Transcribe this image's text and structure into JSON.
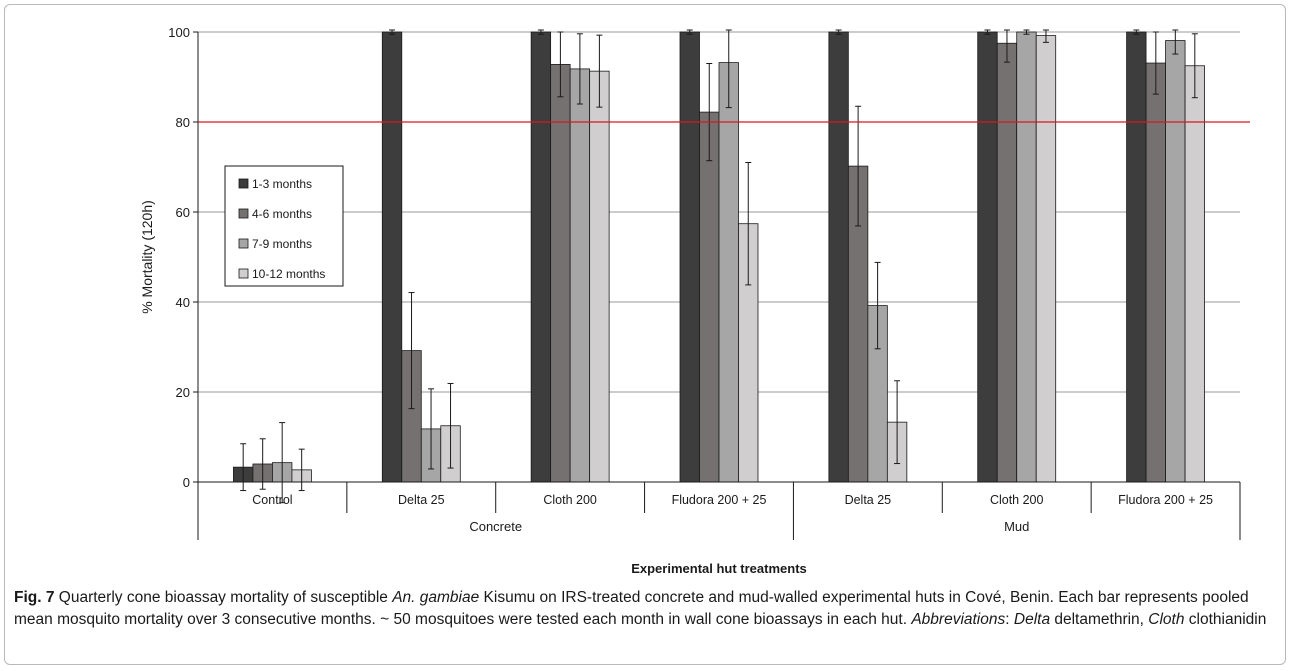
{
  "chart_data": {
    "type": "bar",
    "ylabel": "% Mortality (120h)",
    "xlabel": "Experimental hut treatments",
    "ylim": [
      0,
      100
    ],
    "yticks": [
      0,
      20,
      40,
      60,
      80,
      100
    ],
    "grid": true,
    "legend_position": "left",
    "threshold": 80,
    "threshold_color": "#d7191c",
    "groups": [
      {
        "label": "Concrete",
        "categories": [
          "Control",
          "Delta 25",
          "Cloth 200",
          "Fludora 200 + 25"
        ]
      },
      {
        "label": "Mud",
        "categories": [
          "Delta 25",
          "Cloth 200",
          "Fludora 200 + 25"
        ]
      }
    ],
    "categories": [
      "Control",
      "Delta 25",
      "Cloth 200",
      "Fludora 200 + 25",
      "Delta 25",
      "Cloth 200",
      "Fludora 200 + 25"
    ],
    "series": [
      {
        "name": "1-3 months",
        "color": "#3d3d3d",
        "values": [
          3.3,
          100,
          100,
          100,
          100,
          100,
          100
        ],
        "errors": [
          5.2,
          0.5,
          0.5,
          0.5,
          0.5,
          0.5,
          0.5
        ]
      },
      {
        "name": "4-6 months",
        "color": "#767171",
        "values": [
          4.0,
          29.2,
          92.8,
          82.2,
          70.2,
          97.5,
          93.1
        ],
        "errors": [
          5.6,
          12.9,
          7.2,
          10.8,
          13.3,
          4.2,
          6.9
        ]
      },
      {
        "name": "7-9 months",
        "color": "#a6a6a6",
        "values": [
          4.3,
          11.8,
          91.8,
          93.2,
          39.2,
          100,
          98.1
        ],
        "errors": [
          8.9,
          8.9,
          7.8,
          10.0,
          9.6,
          0.5,
          3.0
        ]
      },
      {
        "name": "10-12 months",
        "color": "#d0cece",
        "values": [
          2.7,
          12.5,
          91.3,
          57.4,
          13.3,
          99.2,
          92.5
        ],
        "errors": [
          4.6,
          9.4,
          8.0,
          13.6,
          9.2,
          1.5,
          7.1
        ]
      }
    ]
  },
  "caption": {
    "figure_label": "Fig. 7",
    "part1": "Quarterly cone bioassay mortality of susceptible ",
    "species": "An. gambiae",
    "part2": " Kisumu on IRS-treated concrete and mud-walled experimental huts in Cové, Benin. Each bar represents pooled mean mosquito mortality over 3 consecutive months. ~ 50 mosquitoes were tested each month in wall cone bioassays in each hut. ",
    "abbr_label": "Abbreviations",
    "abbr_sep": ": ",
    "abbr1_term": "Delta",
    "abbr1_def": " deltamethrin, ",
    "abbr2_term": "Cloth",
    "abbr2_def": " clothianidin"
  }
}
